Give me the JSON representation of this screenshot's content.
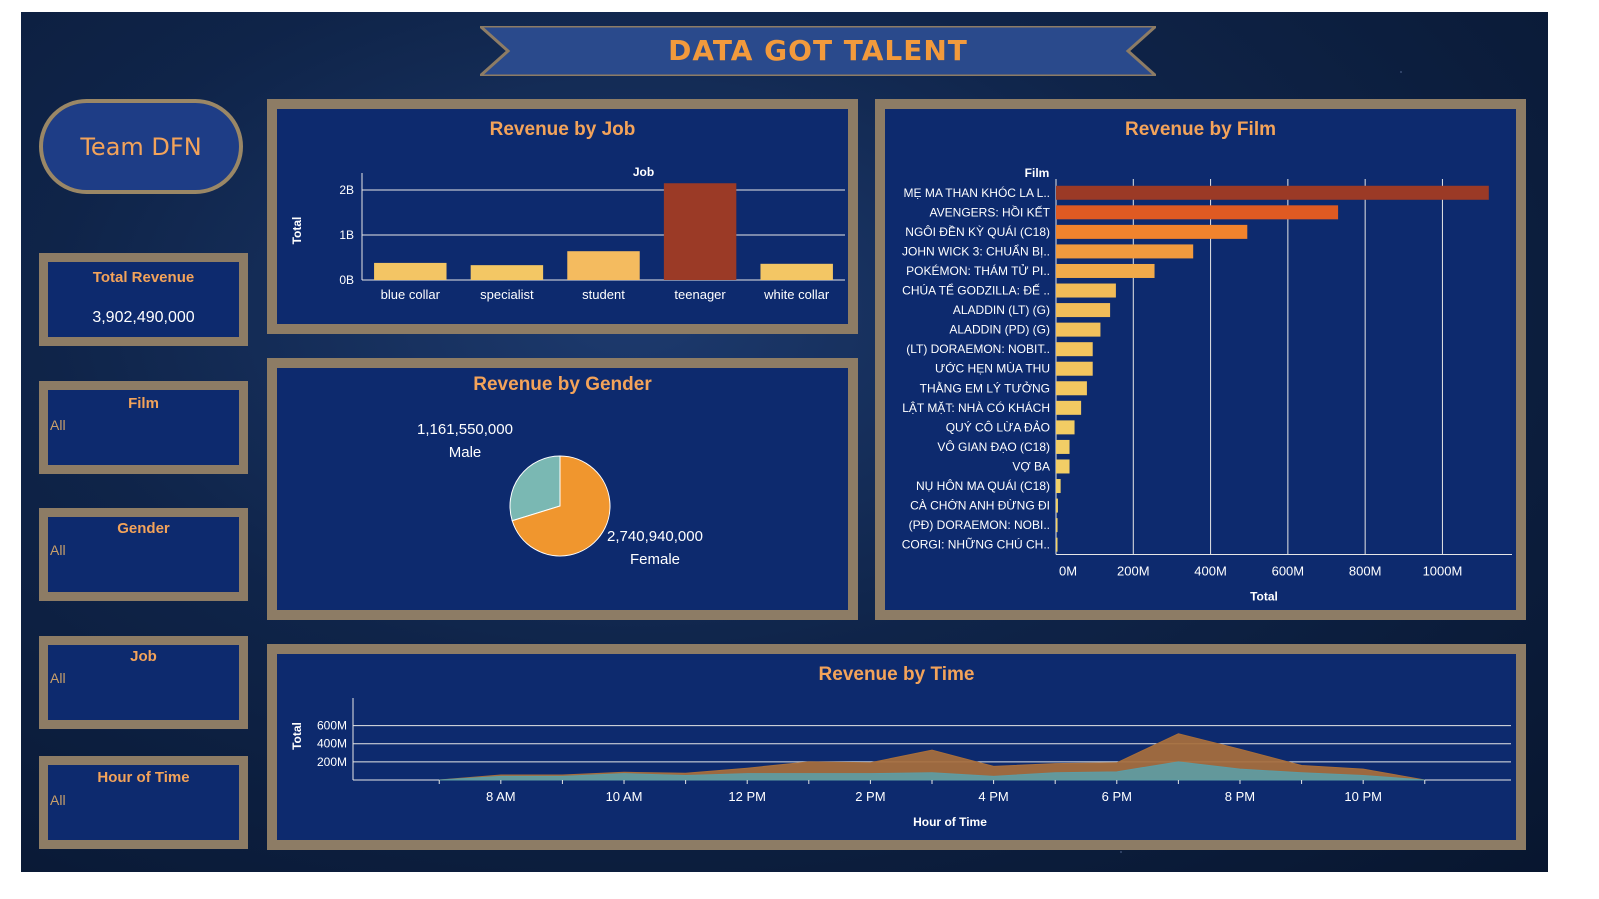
{
  "header": {
    "title": "DATA GOT TALENT"
  },
  "team": {
    "name": "Team DFN"
  },
  "kpi": {
    "title": "Total Revenue",
    "value": "3,902,490,000"
  },
  "filters": [
    {
      "title": "Film",
      "value": "All"
    },
    {
      "title": "Gender",
      "value": "All"
    },
    {
      "title": "Job",
      "value": "All"
    },
    {
      "title": "Hour of Time",
      "value": "All"
    }
  ],
  "colors": {
    "background": "#0d2a6e",
    "border": "#8d7c65",
    "accent": "#f3a35a",
    "bar_dark": "#9b3a26",
    "bar_light": "#f2d46a",
    "female": "#f0962e",
    "male": "#7ab8b3"
  },
  "chart_data": [
    {
      "type": "bar",
      "title": "Revenue by Job",
      "xlabel": "Job",
      "ylabel": "Total",
      "categories": [
        "blue collar",
        "specialist",
        "student",
        "teenager",
        "white collar"
      ],
      "values": [
        380000000,
        330000000,
        640000000,
        2150000000,
        360000000
      ],
      "yticks": [
        {
          "v": 0,
          "label": "0B"
        },
        {
          "v": 1000000000,
          "label": "1B"
        },
        {
          "v": 2000000000,
          "label": "2B"
        }
      ],
      "ylim": [
        0,
        2200000000
      ],
      "grid": true
    },
    {
      "type": "pie",
      "title": "Revenue by Gender",
      "slices": [
        {
          "name": "Male",
          "value": 1161550000,
          "label": "1,161,550,000",
          "color": "#7ab8b3"
        },
        {
          "name": "Female",
          "value": 2740940000,
          "label": "2,740,940,000",
          "color": "#f0962e"
        }
      ]
    },
    {
      "type": "bar",
      "orientation": "horizontal",
      "title": "Revenue by Film",
      "ylabel": "Film",
      "xlabel": "Total",
      "categories": [
        "MẸ MA THAN KHÓC LA L..",
        "AVENGERS: HỒI KẾT",
        "NGÔI ĐỀN KỲ QUÁI (C18)",
        "JOHN WICK 3: CHUẨN BỊ..",
        "POKÉMON: THÁM TỬ PI..",
        "CHÚA TỂ GODZILLA: ĐẾ ..",
        "ALADDIN (LT) (G)",
        "ALADDIN (PD) (G)",
        "(LT) DORAEMON: NOBIT..",
        "ƯỚC HẸN MÙA THU",
        "THẰNG EM LÝ TƯỞNG",
        "LẬT MẶT: NHÀ CÓ KHÁCH",
        "QUÝ CÔ LỪA ĐẢO",
        "VÔ GIAN ĐẠO (C18)",
        "VỢ BA",
        "NỤ HÔN MA QUÁI (C18)",
        "CÀ CHỚN ANH ĐỪNG ĐI",
        "(PĐ) DORAEMON: NOBI..",
        "CORGI: NHỮNG CHÚ CH.."
      ],
      "values": [
        1120000000,
        730000000,
        495000000,
        355000000,
        255000000,
        155000000,
        140000000,
        115000000,
        95000000,
        95000000,
        80000000,
        65000000,
        48000000,
        35000000,
        35000000,
        12000000,
        5000000,
        4000000,
        2000000
      ],
      "xticks": [
        {
          "v": 0,
          "label": "0M"
        },
        {
          "v": 200000000,
          "label": "200M"
        },
        {
          "v": 400000000,
          "label": "400M"
        },
        {
          "v": 600000000,
          "label": "600M"
        },
        {
          "v": 800000000,
          "label": "800M"
        },
        {
          "v": 1000000000,
          "label": "1000M"
        }
      ],
      "xlim": [
        0,
        1180000000
      ],
      "grid": true
    },
    {
      "type": "area",
      "title": "Revenue by Time",
      "xlabel": "Hour of Time",
      "ylabel": "Total",
      "x": [
        7,
        8,
        9,
        10,
        11,
        12,
        13,
        14,
        15,
        16,
        17,
        18,
        19,
        20,
        21,
        22,
        23
      ],
      "series": [
        {
          "name": "Male",
          "color": "#5e9ca3",
          "values": [
            0,
            40000000,
            40000000,
            70000000,
            50000000,
            70000000,
            70000000,
            70000000,
            80000000,
            40000000,
            80000000,
            90000000,
            200000000,
            120000000,
            80000000,
            50000000,
            0
          ]
        },
        {
          "name": "Female",
          "color": "#a86f3c",
          "values": [
            0,
            55000000,
            55000000,
            85000000,
            75000000,
            130000000,
            200000000,
            190000000,
            330000000,
            150000000,
            180000000,
            190000000,
            510000000,
            340000000,
            160000000,
            120000000,
            0
          ]
        }
      ],
      "xticks": [
        {
          "v": 8,
          "label": "8 AM"
        },
        {
          "v": 10,
          "label": "10 AM"
        },
        {
          "v": 12,
          "label": "12 PM"
        },
        {
          "v": 14,
          "label": "2 PM"
        },
        {
          "v": 16,
          "label": "4 PM"
        },
        {
          "v": 18,
          "label": "6 PM"
        },
        {
          "v": 20,
          "label": "8 PM"
        },
        {
          "v": 22,
          "label": "10 PM"
        }
      ],
      "yticks": [
        {
          "v": 200000000,
          "label": "200M"
        },
        {
          "v": 400000000,
          "label": "400M"
        },
        {
          "v": 600000000,
          "label": "600M"
        }
      ],
      "ylim": [
        0,
        750000000
      ],
      "xlim": [
        5.6,
        24.4
      ],
      "grid": true
    }
  ]
}
